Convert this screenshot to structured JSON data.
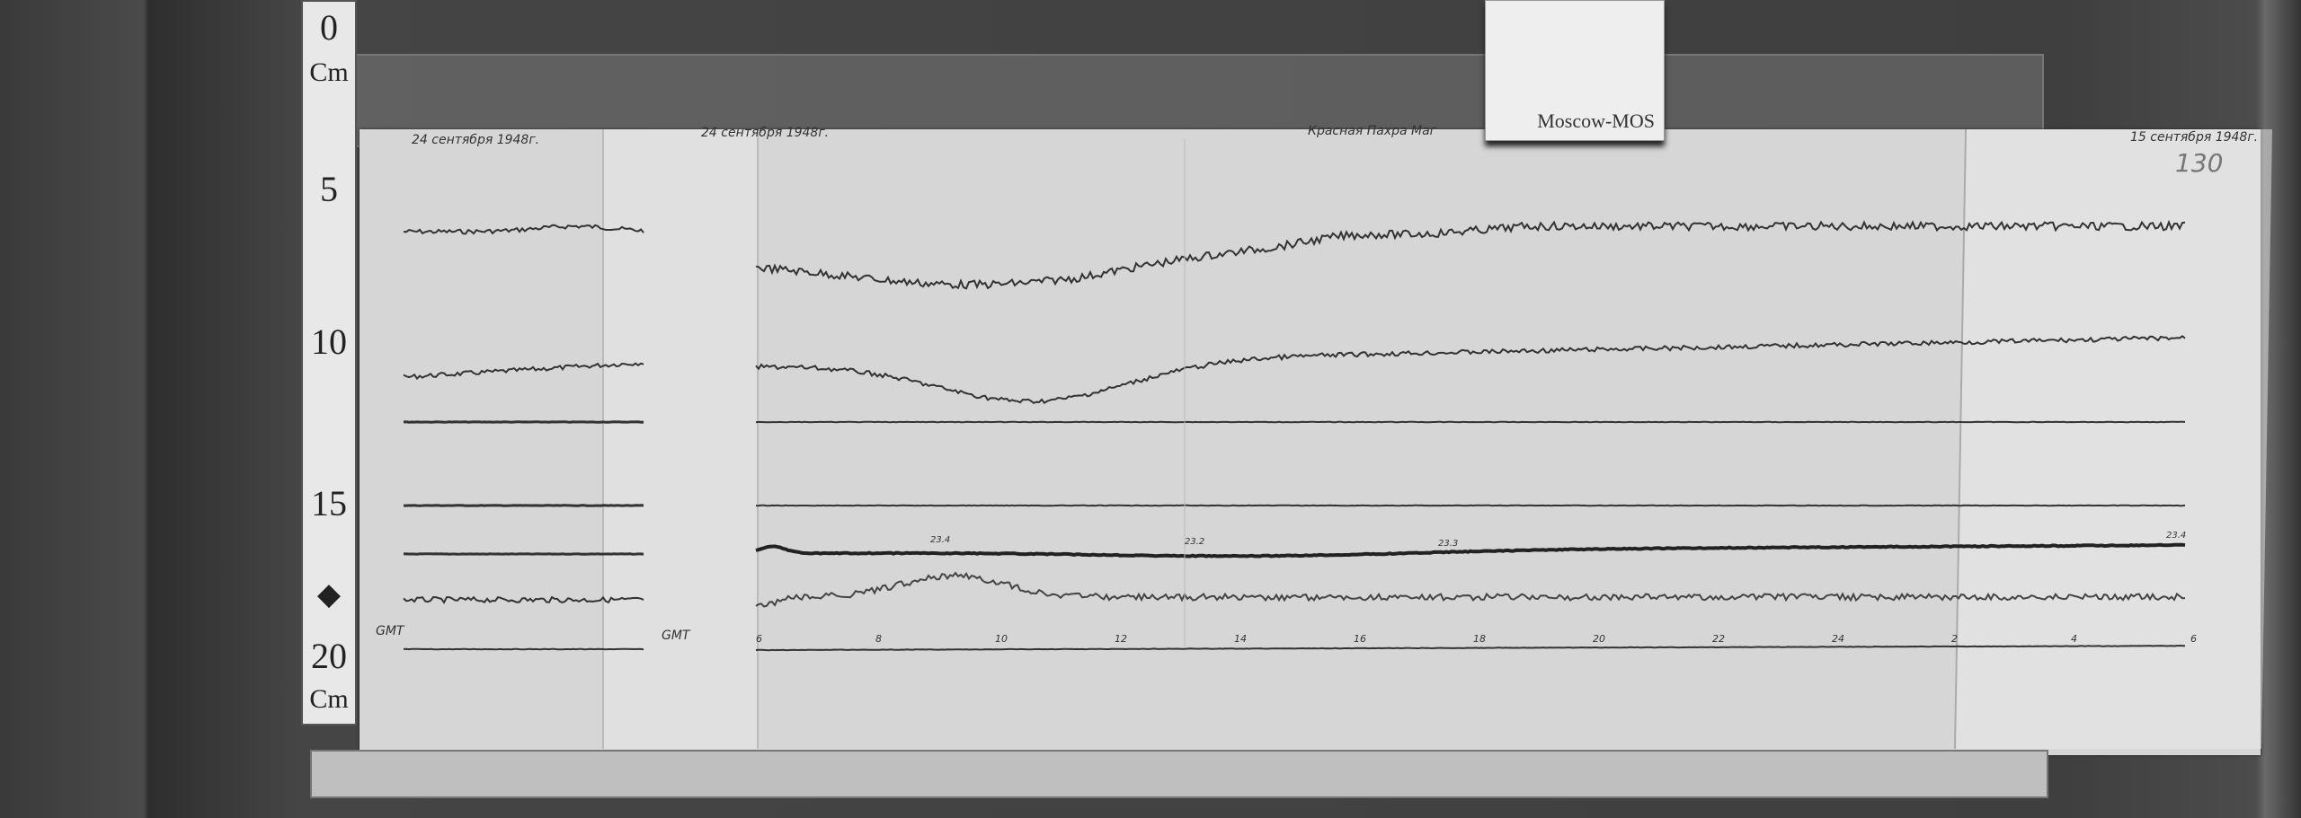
{
  "ruler": {
    "labels": [
      "0",
      "Cm",
      "5",
      "10",
      "15",
      "20",
      "Cm"
    ]
  },
  "card": {
    "label": "Moscow-MOS"
  },
  "magnetogram": {
    "date_left": "24 сентября 1948г.",
    "date_strip": "24 сентября 1948г.",
    "station": "Красная Пахра Маг",
    "date_right": "15 сентября 1948г.",
    "sheet_number": "130",
    "gmt_label": "GMT",
    "hour_labels": [
      "6",
      "8",
      "10",
      "12",
      "14",
      "16",
      "18",
      "20",
      "22",
      "24",
      "2",
      "4",
      "6"
    ],
    "temperature_labels": [
      "23.4",
      "23.2",
      "23.3",
      "23.4"
    ]
  }
}
